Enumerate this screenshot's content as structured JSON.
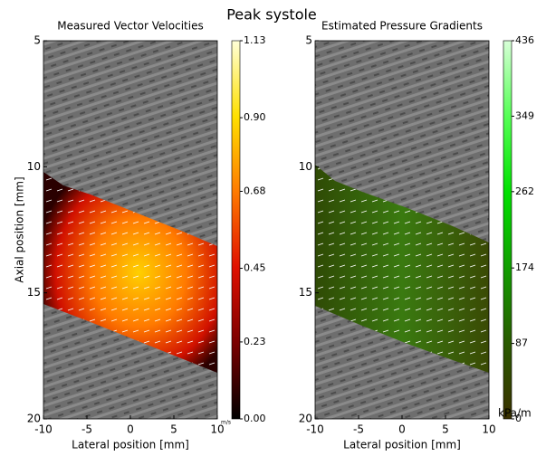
{
  "title": "Peak systole",
  "chart_data": [
    {
      "type": "heatmap",
      "title": "Measured Vector Velocities",
      "xlabel": "Lateral position [mm]",
      "ylabel": "Axial position [mm]",
      "xlim": [
        -10,
        10
      ],
      "ylim": [
        5,
        20
      ],
      "y_inverted": true,
      "xticks": [
        -10,
        -5,
        0,
        5,
        10
      ],
      "yticks": [
        5,
        10,
        15,
        20
      ],
      "colormap": [
        "#000000",
        "#7a0000",
        "#e01000",
        "#ff7a00",
        "#ffe000",
        "#ffffd8"
      ],
      "clim": [
        0,
        1.13
      ],
      "colorbar_label": "m/s",
      "cticks": [
        {
          "value": 0,
          "label": "0.00"
        },
        {
          "value": 0.23,
          "label": "0.23"
        },
        {
          "value": 0.45,
          "label": "0.45"
        },
        {
          "value": 0.68,
          "label": "0.68"
        },
        {
          "value": 0.9,
          "label": "0.90"
        },
        {
          "value": 1.13,
          "label": "1.13"
        }
      ]
    },
    {
      "type": "heatmap",
      "title": "Estimated Pressure Gradients",
      "xlabel": "Lateral position [mm]",
      "xlim": [
        -10,
        10
      ],
      "ylim": [
        5,
        20
      ],
      "y_inverted": true,
      "xticks": [
        -10,
        -5,
        0,
        5,
        10
      ],
      "yticks": [
        5,
        10,
        15,
        20
      ],
      "colormap": [
        "#3a3000",
        "#2a5a00",
        "#119e00",
        "#00e000",
        "#55ff55",
        "#d8ffd8"
      ],
      "clim": [
        0,
        436
      ],
      "colorbar_label": "kPa/m",
      "cticks": [
        0,
        87,
        174,
        262,
        349,
        436
      ]
    }
  ]
}
